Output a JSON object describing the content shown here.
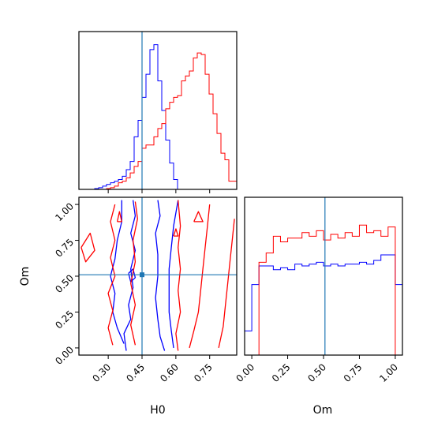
{
  "chart_data": [
    {
      "type": "histogram",
      "panel": "H0",
      "xlabel": "",
      "ylabel": "",
      "xlim": [
        0.17,
        0.87
      ],
      "bin_edges": [
        0.17,
        0.1875,
        0.205,
        0.2225,
        0.24,
        0.2575,
        0.275,
        0.2925,
        0.31,
        0.3275,
        0.345,
        0.3625,
        0.38,
        0.3975,
        0.415,
        0.4325,
        0.45,
        0.4675,
        0.485,
        0.5025,
        0.52,
        0.5375,
        0.555,
        0.5725,
        0.59,
        0.6075,
        0.625,
        0.6425,
        0.66,
        0.6775,
        0.695,
        0.7125,
        0.73,
        0.7475,
        0.765,
        0.7825,
        0.8,
        0.8175,
        0.835,
        0.8525,
        0.87
      ],
      "series": [
        {
          "color": "#0000ff",
          "counts": [
            0,
            0,
            0,
            0,
            0.5,
            1,
            2,
            3,
            4,
            5,
            6,
            8,
            12,
            17,
            32,
            42,
            56,
            70,
            85,
            88,
            66,
            48,
            30,
            16,
            6,
            0,
            0,
            0,
            0,
            0,
            0,
            0,
            0,
            0,
            0,
            0,
            0,
            0,
            0,
            0
          ]
        },
        {
          "color": "#ff0000",
          "counts": [
            0,
            0,
            0,
            0,
            0,
            0,
            0,
            0.5,
            1,
            2,
            4,
            5,
            7,
            10,
            14,
            17,
            25,
            27,
            27,
            32,
            37,
            40,
            49,
            53,
            56,
            57,
            66,
            69,
            72,
            80,
            83,
            82,
            70,
            58,
            46,
            34,
            22,
            18,
            5,
            5
          ]
        }
      ],
      "truth_line": 0.45,
      "xticks": [
        0.3,
        0.45,
        0.6,
        0.75
      ]
    },
    {
      "type": "contour",
      "panel": "H0-Om",
      "xlabel": "H0",
      "ylabel": "Om",
      "xlim": [
        0.17,
        0.87
      ],
      "ylim": [
        -0.05,
        1.05
      ],
      "xticks": [
        "0.30",
        "0.45",
        "0.60",
        "0.75"
      ],
      "yticks": [
        "0.00",
        "0.25",
        "0.50",
        "0.75",
        "1.00"
      ],
      "truth_point": [
        0.45,
        0.51
      ],
      "series": [
        {
          "color": "#0000ff",
          "contours": [
            [
              [
                0.38,
                -0.02
              ],
              [
                0.37,
                0.1
              ],
              [
                0.4,
                0.2
              ],
              [
                0.39,
                0.3
              ],
              [
                0.41,
                0.42
              ],
              [
                0.4,
                0.55
              ],
              [
                0.42,
                0.68
              ],
              [
                0.4,
                0.8
              ],
              [
                0.42,
                0.92
              ],
              [
                0.41,
                1.03
              ]
            ],
            [
              [
                0.37,
                0.03
              ],
              [
                0.34,
                0.14
              ],
              [
                0.32,
                0.25
              ],
              [
                0.33,
                0.38
              ],
              [
                0.31,
                0.5
              ],
              [
                0.33,
                0.62
              ],
              [
                0.34,
                0.75
              ],
              [
                0.36,
                0.88
              ],
              [
                0.36,
                1.03
              ]
            ],
            [
              [
                0.55,
                -0.02
              ],
              [
                0.53,
                0.08
              ],
              [
                0.52,
                0.2
              ],
              [
                0.51,
                0.35
              ],
              [
                0.52,
                0.5
              ],
              [
                0.52,
                0.65
              ],
              [
                0.51,
                0.8
              ],
              [
                0.53,
                0.92
              ],
              [
                0.52,
                1.03
              ]
            ],
            [
              [
                0.59,
                0.0
              ],
              [
                0.58,
                0.12
              ],
              [
                0.57,
                0.25
              ],
              [
                0.57,
                0.4
              ],
              [
                0.57,
                0.55
              ],
              [
                0.58,
                0.7
              ],
              [
                0.59,
                0.85
              ],
              [
                0.61,
                1.03
              ]
            ],
            [
              [
                0.39,
                0.52
              ],
              [
                0.41,
                0.55
              ],
              [
                0.42,
                0.49
              ],
              [
                0.4,
                0.46
              ],
              [
                0.39,
                0.52
              ]
            ]
          ]
        },
        {
          "color": "#ff0000",
          "contours": [
            [
              [
                0.32,
                0.02
              ],
              [
                0.3,
                0.14
              ],
              [
                0.32,
                0.26
              ],
              [
                0.3,
                0.38
              ],
              [
                0.33,
                0.5
              ],
              [
                0.31,
                0.63
              ],
              [
                0.33,
                0.75
              ],
              [
                0.31,
                0.88
              ],
              [
                0.33,
                1.0
              ]
            ],
            [
              [
                0.42,
                0.02
              ],
              [
                0.4,
                0.16
              ],
              [
                0.42,
                0.3
              ],
              [
                0.4,
                0.45
              ],
              [
                0.42,
                0.6
              ],
              [
                0.41,
                0.75
              ],
              [
                0.43,
                0.9
              ],
              [
                0.42,
                1.02
              ]
            ],
            [
              [
                0.61,
                -0.02
              ],
              [
                0.6,
                0.1
              ],
              [
                0.62,
                0.25
              ],
              [
                0.61,
                0.4
              ],
              [
                0.62,
                0.55
              ],
              [
                0.61,
                0.7
              ],
              [
                0.62,
                0.85
              ],
              [
                0.61,
                1.03
              ]
            ],
            [
              [
                0.66,
                0.0
              ],
              [
                0.68,
                0.12
              ],
              [
                0.7,
                0.25
              ],
              [
                0.71,
                0.4
              ],
              [
                0.72,
                0.55
              ],
              [
                0.73,
                0.7
              ],
              [
                0.74,
                0.85
              ],
              [
                0.75,
                1.0
              ]
            ],
            [
              [
                0.79,
                0.0
              ],
              [
                0.81,
                0.15
              ],
              [
                0.82,
                0.3
              ],
              [
                0.83,
                0.45
              ],
              [
                0.84,
                0.6
              ],
              [
                0.85,
                0.75
              ],
              [
                0.86,
                0.9
              ]
            ],
            [
              [
                0.18,
                0.7
              ],
              [
                0.22,
                0.8
              ],
              [
                0.24,
                0.68
              ],
              [
                0.2,
                0.6
              ],
              [
                0.18,
                0.7
              ]
            ],
            [
              [
                0.59,
                0.78
              ],
              [
                0.6,
                0.83
              ],
              [
                0.61,
                0.78
              ],
              [
                0.59,
                0.78
              ]
            ],
            [
              [
                0.34,
                0.88
              ],
              [
                0.35,
                0.95
              ],
              [
                0.36,
                0.88
              ],
              [
                0.34,
                0.88
              ]
            ],
            [
              [
                0.68,
                0.88
              ],
              [
                0.7,
                0.95
              ],
              [
                0.72,
                0.88
              ],
              [
                0.68,
                0.88
              ]
            ]
          ]
        }
      ]
    },
    {
      "type": "histogram",
      "panel": "Om",
      "xlabel": "Om",
      "ylabel": "",
      "xlim": [
        -0.05,
        1.05
      ],
      "bin_edges": [
        -0.05,
        0.0,
        0.05,
        0.1,
        0.15,
        0.2,
        0.25,
        0.3,
        0.35,
        0.4,
        0.45,
        0.5,
        0.55,
        0.6,
        0.65,
        0.7,
        0.75,
        0.8,
        0.85,
        0.9,
        0.95,
        1.0,
        1.05
      ],
      "series": [
        {
          "color": "#0000ff",
          "counts": [
            13,
            38,
            48,
            48,
            46,
            47,
            46,
            49,
            48,
            49,
            50,
            48,
            49,
            48,
            49,
            49,
            50,
            49,
            51,
            54,
            54,
            38
          ]
        },
        {
          "color": "#ff0000",
          "counts": [
            0,
            0,
            50,
            55,
            64,
            61,
            63,
            63,
            66,
            64,
            67,
            62,
            65,
            63,
            66,
            64,
            70,
            66,
            67,
            64,
            69,
            0
          ]
        }
      ],
      "truth_line": 0.51,
      "xticks": [
        "0.00",
        "0.25",
        "0.50",
        "0.75",
        "1.00"
      ]
    }
  ],
  "labels": {
    "h0": "H0",
    "om_x": "Om",
    "om_y": "Om"
  }
}
